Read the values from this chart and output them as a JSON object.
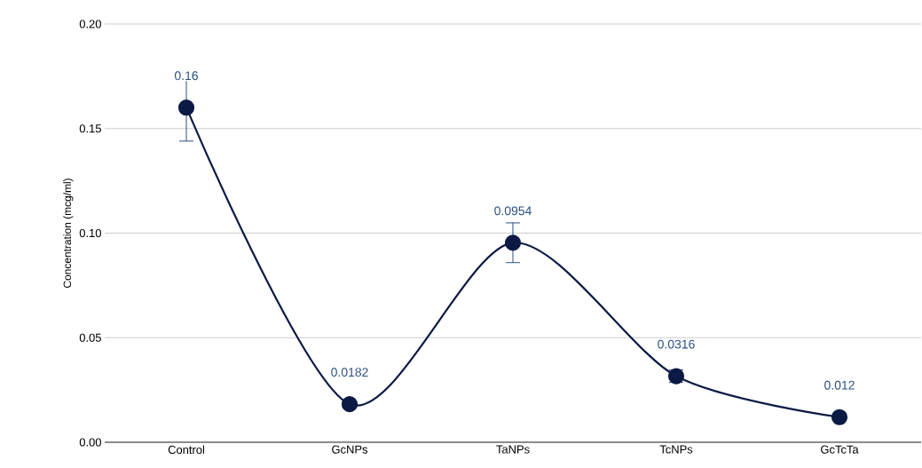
{
  "chart_data": {
    "type": "line",
    "ylabel": "Concentration (mcg/ml)",
    "categories": [
      "Control",
      "GcNPs",
      "TaNPs",
      "TcNPs",
      "GcTcTa"
    ],
    "values": [
      0.16,
      0.0182,
      0.0954,
      0.0316,
      0.012
    ],
    "errors": [
      0.016,
      null,
      0.0095,
      0.003,
      null
    ],
    "color": "#0b1a45",
    "marker": "circle",
    "line_style": "solid",
    "data_labels": true,
    "ylim": [
      0,
      0.2
    ],
    "yticks": [
      {
        "value": 0,
        "label": "0.00"
      },
      {
        "value": 0.05,
        "label": "0.05"
      },
      {
        "value": 0.1,
        "label": "0.10"
      },
      {
        "value": 0.15,
        "label": "0.15"
      },
      {
        "value": 0.2,
        "label": "0.20"
      }
    ],
    "grid": "y"
  }
}
